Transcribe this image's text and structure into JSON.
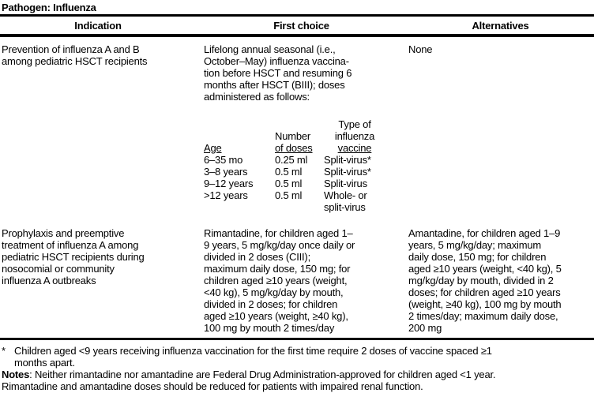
{
  "title": "Pathogen: Influenza",
  "columns": {
    "indication": "Indication",
    "first_choice": "First choice",
    "alternatives": "Alternatives"
  },
  "rows": [
    {
      "indication": "Prevention of influenza A and B\namong pediatric HSCT recipients",
      "first_choice": "Lifelong annual seasonal (i.e.,\nOctober–May) influenza vaccina-\ntion before HSCT and resuming 6\nmonths after HSCT (BIII); doses\nadministered as follows:",
      "alternatives": "None"
    },
    {
      "indication": "Prophylaxis and preemptive\ntreatment of influenza A among\npediatric HSCT recipients during\nnosocomial or community\ninfluenza A outbreaks",
      "first_choice": "Rimantadine, for children aged 1–\n9 years, 5 mg/kg/day once daily or\ndivided in 2 doses (CIII);\nmaximum daily dose, 150 mg; for\nchildren aged ≥10 years (weight,\n<40 kg), 5 mg/kg/day by mouth,\ndivided in 2 doses; for children\naged ≥10 years (weight, ≥40 kg),\n100 mg by mouth 2 times/day",
      "alternatives": "Amantadine, for children aged 1–9\nyears, 5 mg/kg/day; maximum\ndaily dose, 150 mg; for children\naged ≥10 years (weight, <40 kg), 5\nmg/kg/day by mouth, divided in 2\ndoses; for children aged ≥10 years\n(weight, ≥40 kg), 100 mg by mouth\n2 times/day; maximum daily dose,\n200 mg"
    }
  ],
  "dose_table": {
    "headers": {
      "age": "Age",
      "doses_line1": "Number",
      "doses_line2": "of doses",
      "type_line1": "Type of",
      "type_line2": "influenza",
      "type_line3": "vaccine"
    },
    "rows": [
      {
        "age": "6–35 mo",
        "doses": "0.25 ml",
        "type": "Split-virus*"
      },
      {
        "age": "3–8 years",
        "doses": "0.5 ml",
        "type": "Split-virus*"
      },
      {
        "age": "9–12 years",
        "doses": "0.5 ml",
        "type": "Split-virus"
      },
      {
        "age": ">12 years",
        "doses": "0.5 ml",
        "type": "Whole- or\nsplit-virus"
      }
    ]
  },
  "footnotes": {
    "asterisk_marker": "*",
    "asterisk_text": "Children aged <9 years receiving influenza vaccination for the first time require 2 doses of vaccine spaced ≥1\nmonths apart.",
    "notes_label": "Notes",
    "notes_text": ": Neither rimantadine nor amantadine are Federal Drug Administration-approved for children aged <1 year.\nRimantadine and amantadine doses should be reduced for patients with impaired renal function."
  }
}
